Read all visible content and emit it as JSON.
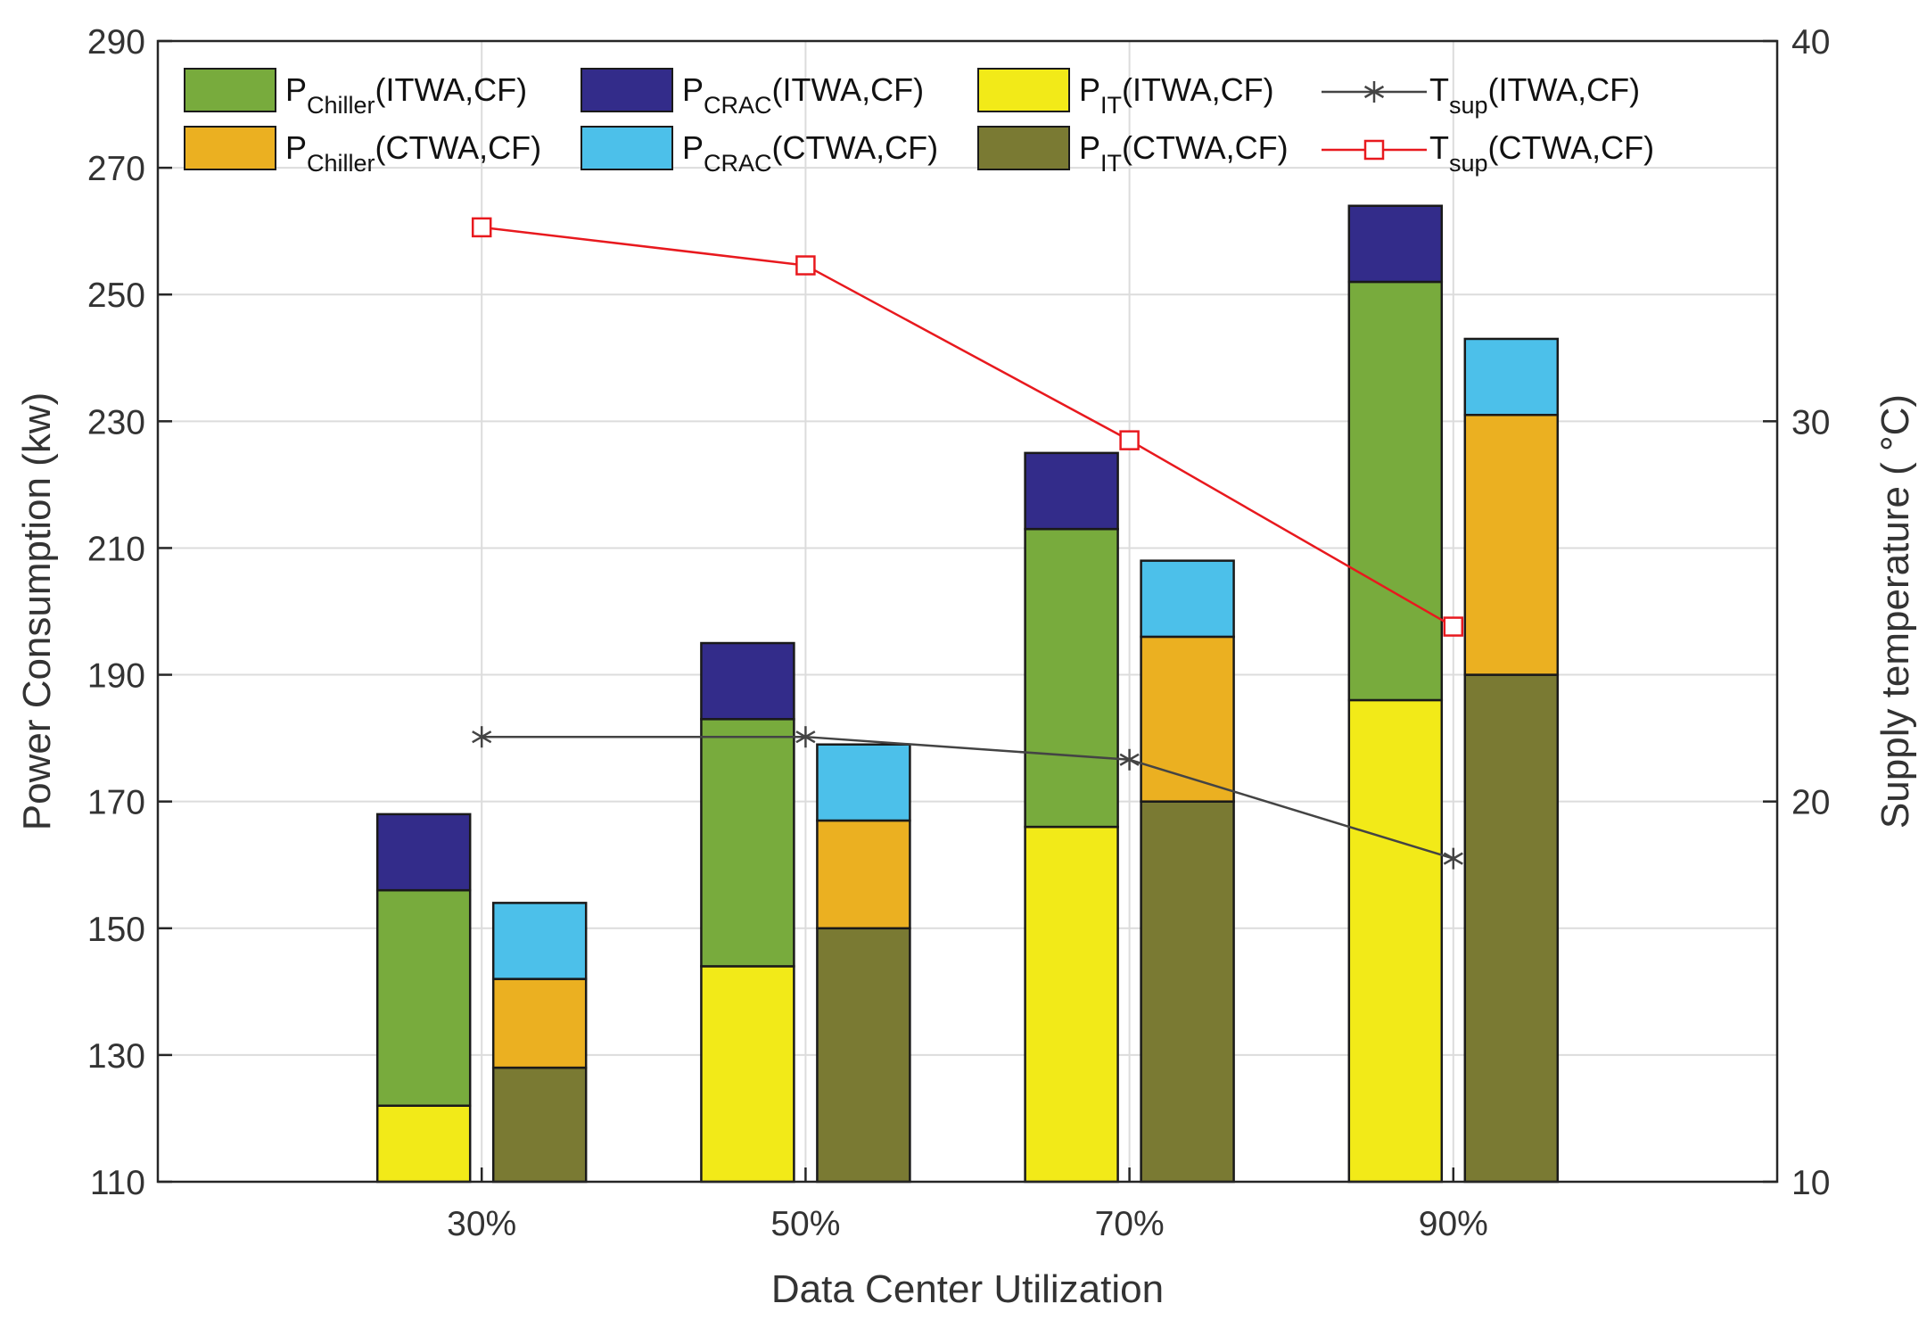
{
  "chart_data": {
    "type": "bar",
    "subtype": "stacked-grouped-bar-with-lines",
    "xlabel": "Data Center Utilization",
    "ylabel": "Power Consumption (kw)",
    "y2label": "Supply temperature ( °C)",
    "ylim": [
      110,
      290
    ],
    "yticks": [
      110,
      130,
      150,
      170,
      190,
      210,
      230,
      250,
      270,
      290
    ],
    "y2lim": [
      10,
      40
    ],
    "y2ticks": [
      10,
      20,
      30,
      40
    ],
    "grid": true,
    "categories": [
      "30%",
      "50%",
      "70%",
      "90%"
    ],
    "groups": [
      {
        "name": "ITWA,CF",
        "components": [
          {
            "key": "P_IT",
            "values": [
              122,
              144,
              166,
              186
            ],
            "color": "#f2ea18"
          },
          {
            "key": "P_Chiller",
            "values": [
              156,
              183,
              213,
              252
            ],
            "color": "#78ab3d"
          },
          {
            "key": "P_CRAC",
            "values": [
              168,
              195,
              225,
              264
            ],
            "color": "#332c8a"
          }
        ]
      },
      {
        "name": "CTWA,CF",
        "components": [
          {
            "key": "P_IT",
            "values": [
              128,
              150,
              170,
              190
            ],
            "color": "#7a7a33"
          },
          {
            "key": "P_Chiller",
            "values": [
              142,
              167,
              196,
              231
            ],
            "color": "#ebb021"
          },
          {
            "key": "P_CRAC",
            "values": [
              154,
              179,
              208,
              243
            ],
            "color": "#4cc0ea"
          }
        ]
      }
    ],
    "lines": [
      {
        "name": "T_sup(ITWA,CF)",
        "axis": "right",
        "values": [
          21.7,
          21.7,
          21.1,
          18.5
        ],
        "color": "#444444",
        "marker": "asterisk"
      },
      {
        "name": "T_sup(CTWA,CF)",
        "axis": "right",
        "values": [
          35.1,
          34.1,
          29.5,
          24.6
        ],
        "color": "#e8191e",
        "marker": "square"
      }
    ],
    "legend": {
      "placement": "top",
      "entries": [
        {
          "main": "P",
          "sub": "Chiller",
          "tail": "(ITWA,CF)",
          "color": "#78ab3d",
          "kind": "patch"
        },
        {
          "main": "P",
          "sub": "CRAC",
          "tail": "(ITWA,CF)",
          "color": "#332c8a",
          "kind": "patch"
        },
        {
          "main": "P",
          "sub": "IT",
          "tail": "(ITWA,CF)",
          "color": "#f2ea18",
          "kind": "patch"
        },
        {
          "main": "T",
          "sub": "sup",
          "tail": "(ITWA,CF)",
          "color": "#444444",
          "kind": "line-asterisk"
        },
        {
          "main": "P",
          "sub": "Chiller",
          "tail": "(CTWA,CF)",
          "color": "#ebb021",
          "kind": "patch"
        },
        {
          "main": "P",
          "sub": "CRAC",
          "tail": "(CTWA,CF)",
          "color": "#4cc0ea",
          "kind": "patch"
        },
        {
          "main": "P",
          "sub": "IT",
          "tail": "(CTWA,CF)",
          "color": "#7a7a33",
          "kind": "patch"
        },
        {
          "main": "T",
          "sub": "sup",
          "tail": "(CTWA,CF)",
          "color": "#e8191e",
          "kind": "line-square"
        }
      ]
    }
  }
}
